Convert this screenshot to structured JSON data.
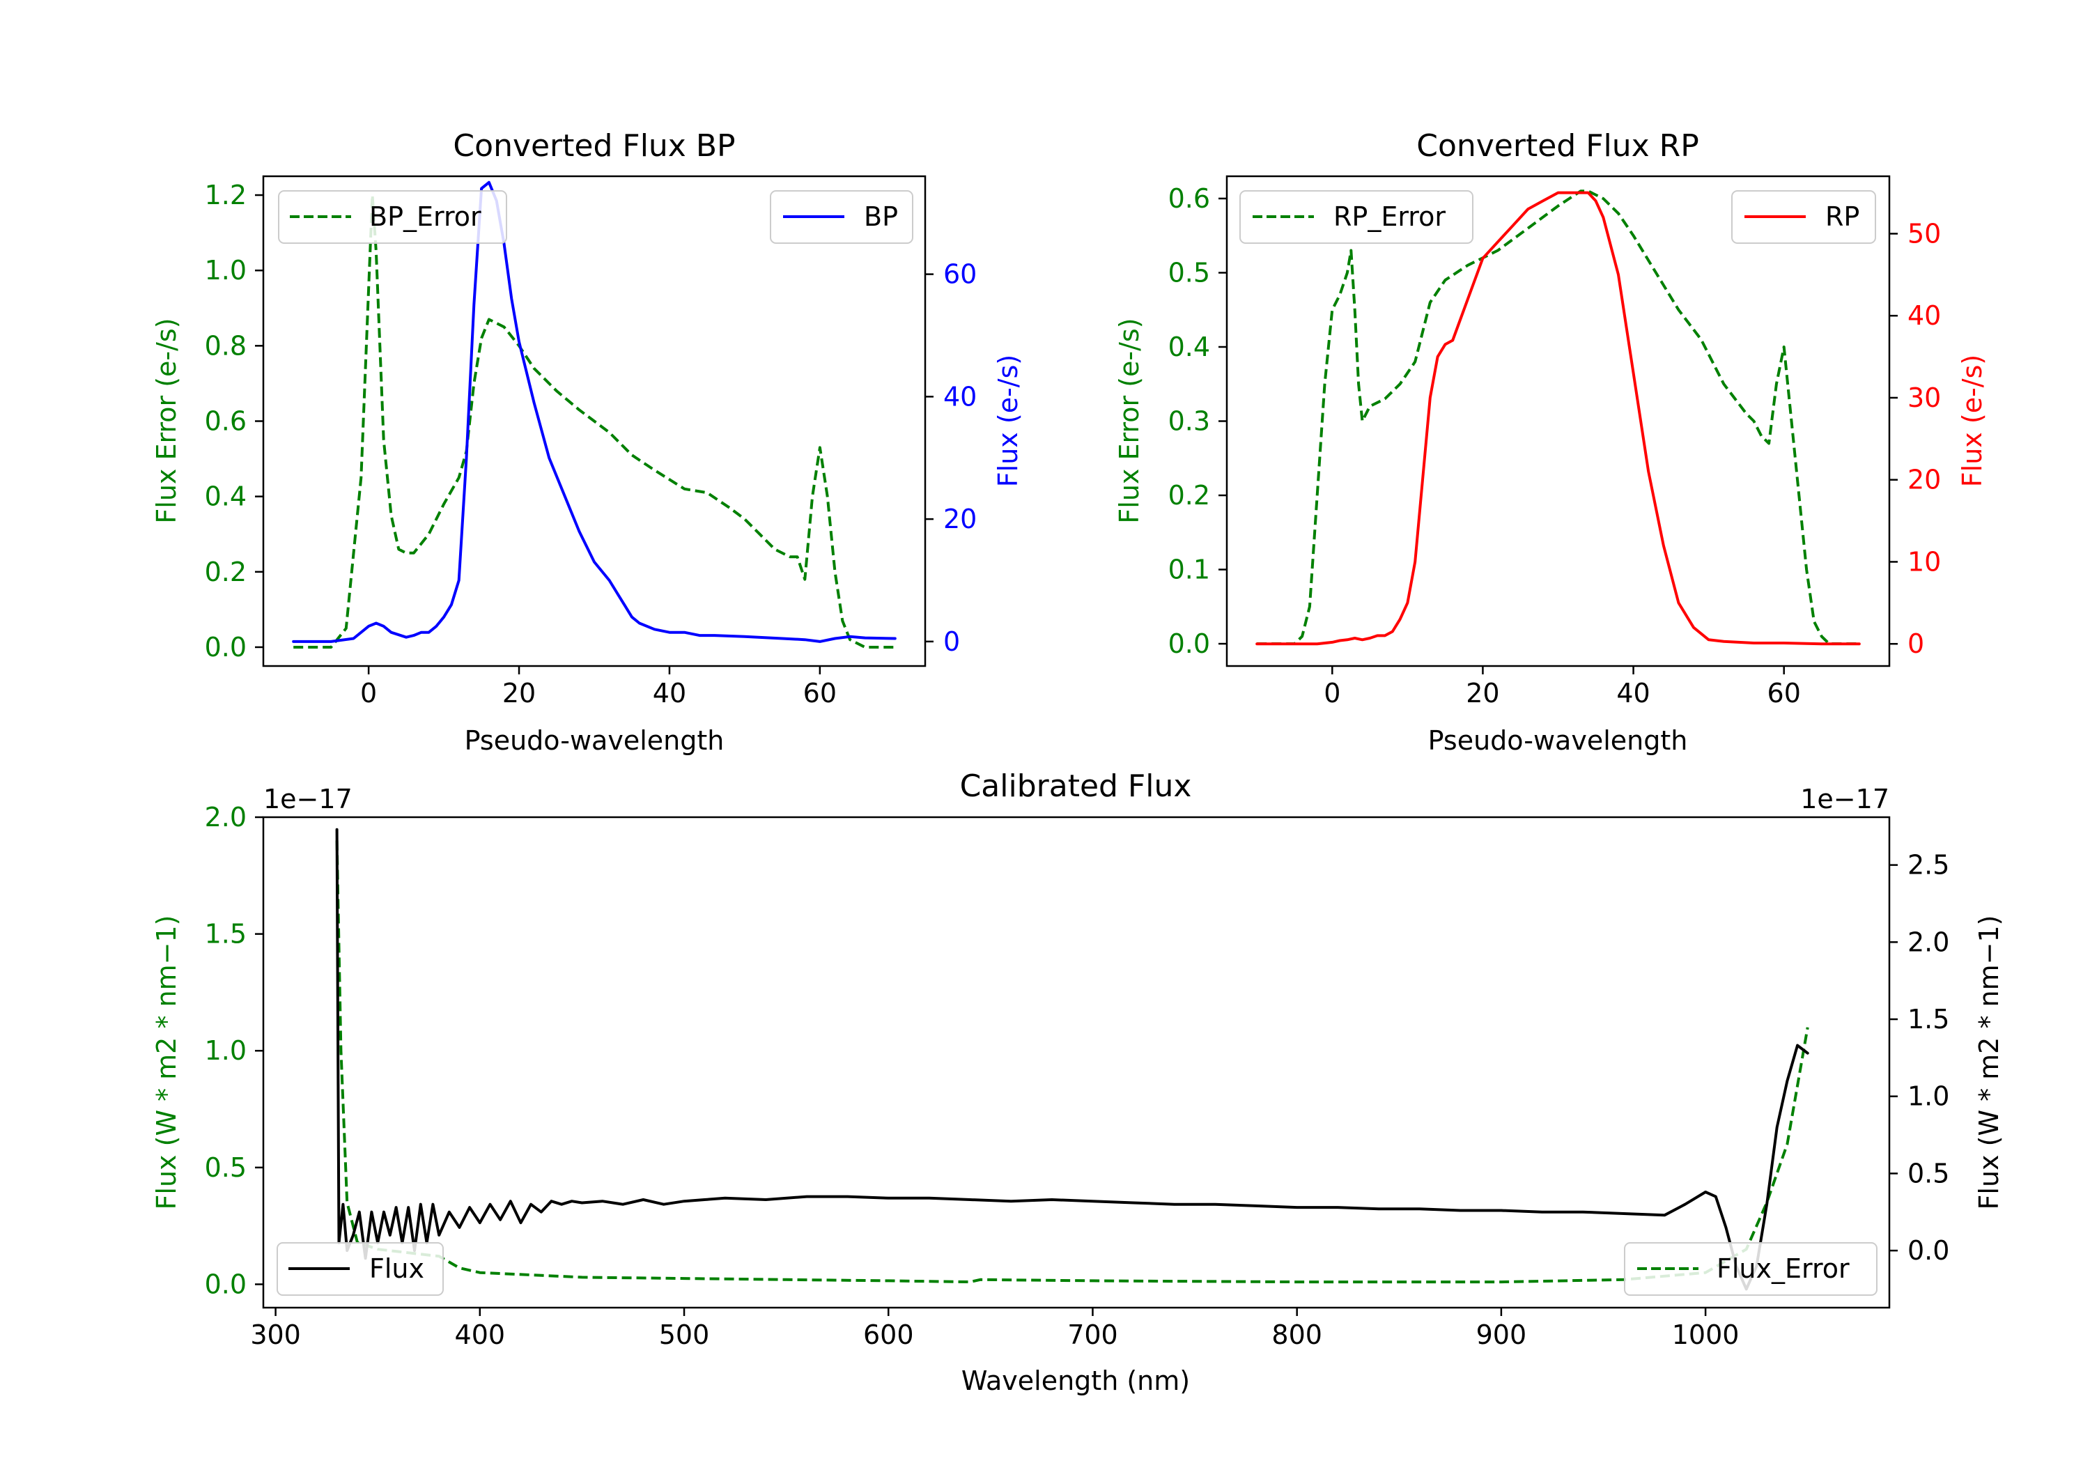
{
  "colors": {
    "error": "#008000",
    "bp": "#0000ff",
    "rp": "#ff0000",
    "flux": "#000000",
    "axis": "#000000"
  },
  "chart_data": [
    {
      "id": "bp",
      "type": "line",
      "title": "Converted Flux BP",
      "xlabel": "Pseudo-wavelength",
      "ylabel_left": "Flux Error (e-/s)",
      "ylabel_right": "Flux (e-/s)",
      "xlim": [
        -14,
        74
      ],
      "ylim_left": [
        -0.05,
        1.25
      ],
      "ylim_right": [
        -4,
        76
      ],
      "xticks": [
        0,
        20,
        40,
        60
      ],
      "xtick_labels": [
        "0",
        "20",
        "40",
        "60"
      ],
      "yticks_left": [
        0.0,
        0.2,
        0.4,
        0.6,
        0.8,
        1.0,
        1.2
      ],
      "ytick_labels_left": [
        "0.0",
        "0.2",
        "0.4",
        "0.6",
        "0.8",
        "1.0",
        "1.2"
      ],
      "yticks_right": [
        0,
        20,
        40,
        60
      ],
      "ytick_labels_right": [
        "0",
        "20",
        "40",
        "60"
      ],
      "legend_left": {
        "label": "BP_Error",
        "placement": "upper-left"
      },
      "legend_right": {
        "label": "BP",
        "placement": "upper-right"
      },
      "series": [
        {
          "name": "BP_Error",
          "axis": "left",
          "style": "dashed",
          "color": "error",
          "x": [
            -10,
            -5,
            -3,
            -1,
            0,
            0.5,
            1,
            2,
            3,
            4,
            5,
            6,
            8,
            10,
            12,
            13,
            14,
            15,
            16,
            18,
            20,
            22,
            25,
            28,
            32,
            35,
            38,
            42,
            45,
            48,
            50,
            52,
            54,
            56,
            57,
            58,
            59,
            60,
            61,
            62,
            63,
            64,
            66,
            70
          ],
          "y": [
            0,
            0,
            0.05,
            0.45,
            0.95,
            1.2,
            1.05,
            0.55,
            0.35,
            0.26,
            0.25,
            0.25,
            0.3,
            0.38,
            0.45,
            0.52,
            0.7,
            0.82,
            0.87,
            0.85,
            0.8,
            0.74,
            0.68,
            0.63,
            0.57,
            0.51,
            0.47,
            0.42,
            0.41,
            0.37,
            0.34,
            0.3,
            0.26,
            0.24,
            0.24,
            0.18,
            0.4,
            0.53,
            0.4,
            0.2,
            0.07,
            0.02,
            0,
            0
          ]
        },
        {
          "name": "BP",
          "axis": "right",
          "style": "solid",
          "color": "bp",
          "x": [
            -10,
            -5,
            -2,
            0,
            1,
            2,
            3,
            5,
            6,
            7,
            8,
            9,
            10,
            11,
            12,
            13,
            14,
            15,
            16,
            17,
            18,
            19,
            20,
            22,
            24,
            26,
            28,
            30,
            32,
            34,
            35,
            36,
            38,
            40,
            42,
            44,
            46,
            50,
            55,
            58,
            60,
            62,
            64,
            66,
            70
          ],
          "y": [
            0,
            0,
            0.5,
            2.5,
            3,
            2.5,
            1.5,
            0.7,
            1,
            1.5,
            1.5,
            2.5,
            4,
            6,
            10,
            30,
            55,
            74,
            75,
            72,
            65,
            56,
            49,
            39,
            30,
            24,
            18,
            13,
            10,
            6,
            4,
            3,
            2,
            1.5,
            1.5,
            1,
            1,
            0.8,
            0.5,
            0.3,
            0,
            0.5,
            0.8,
            0.6,
            0.5
          ]
        }
      ]
    },
    {
      "id": "rp",
      "type": "line",
      "title": "Converted Flux RP",
      "xlabel": "Pseudo-wavelength",
      "ylabel_left": "Flux Error (e-/s)",
      "ylabel_right": "Flux (e-/s)",
      "xlim": [
        -14,
        74
      ],
      "ylim_left": [
        -0.03,
        0.63
      ],
      "ylim_right": [
        -2.7,
        57
      ],
      "xticks": [
        0,
        20,
        40,
        60
      ],
      "xtick_labels": [
        "0",
        "20",
        "40",
        "60"
      ],
      "yticks_left": [
        0.0,
        0.1,
        0.2,
        0.3,
        0.4,
        0.5,
        0.6
      ],
      "ytick_labels_left": [
        "0.0",
        "0.1",
        "0.2",
        "0.3",
        "0.4",
        "0.5",
        "0.6"
      ],
      "yticks_right": [
        0,
        10,
        20,
        30,
        40,
        50
      ],
      "ytick_labels_right": [
        "0",
        "10",
        "20",
        "30",
        "40",
        "50"
      ],
      "legend_left": {
        "label": "RP_Error",
        "placement": "upper-left"
      },
      "legend_right": {
        "label": "RP",
        "placement": "upper-right"
      },
      "series": [
        {
          "name": "RP_Error",
          "axis": "left",
          "style": "dashed",
          "color": "error",
          "x": [
            -10,
            -5,
            -4,
            -3,
            -2,
            -1,
            0,
            1,
            2,
            2.5,
            3,
            3.5,
            4,
            5,
            7,
            9,
            11,
            13,
            15,
            18,
            22,
            26,
            30,
            33,
            34,
            36,
            38,
            40,
            43,
            46,
            49,
            52,
            55,
            56,
            57,
            58,
            59,
            60,
            61,
            62,
            63,
            64,
            65,
            66,
            70
          ],
          "y": [
            0,
            0,
            0.01,
            0.05,
            0.2,
            0.35,
            0.45,
            0.47,
            0.5,
            0.53,
            0.45,
            0.35,
            0.3,
            0.32,
            0.33,
            0.35,
            0.38,
            0.46,
            0.49,
            0.51,
            0.53,
            0.56,
            0.59,
            0.61,
            0.61,
            0.6,
            0.58,
            0.55,
            0.5,
            0.45,
            0.41,
            0.35,
            0.31,
            0.3,
            0.28,
            0.27,
            0.35,
            0.4,
            0.3,
            0.2,
            0.1,
            0.03,
            0.01,
            0,
            0
          ]
        },
        {
          "name": "RP",
          "axis": "right",
          "style": "solid",
          "color": "rp",
          "x": [
            -10,
            -2,
            0,
            1,
            2,
            3,
            4,
            5,
            6,
            7,
            8,
            9,
            10,
            11,
            12,
            13,
            14,
            15,
            16,
            18,
            20,
            22,
            24,
            26,
            28,
            30,
            32,
            33,
            34,
            35,
            36,
            38,
            40,
            42,
            44,
            46,
            48,
            50,
            52,
            54,
            56,
            60,
            65,
            70
          ],
          "y": [
            0,
            0,
            0.2,
            0.4,
            0.5,
            0.7,
            0.5,
            0.7,
            1,
            1,
            1.5,
            3,
            5,
            10,
            20,
            30,
            35,
            36.5,
            37,
            42,
            47,
            49,
            51,
            53,
            54,
            55,
            55,
            55,
            55,
            54,
            52,
            45,
            33,
            21,
            12,
            5,
            2,
            0.5,
            0.3,
            0.2,
            0.1,
            0.1,
            0,
            0
          ]
        }
      ]
    },
    {
      "id": "cal",
      "type": "line",
      "title": "Calibrated Flux",
      "xlabel": "Wavelength (nm)",
      "ylabel_left": "Flux (W * m2 * nm−1)",
      "ylabel_right": "Flux (W * m2 * nm−1)",
      "offset_left": "1e−17",
      "offset_right": "1e−17",
      "xlim": [
        294,
        1090
      ],
      "ylim_left": [
        -0.1,
        2.0
      ],
      "ylim_right": [
        -0.37,
        2.81
      ],
      "xticks": [
        300,
        400,
        500,
        600,
        700,
        800,
        900,
        1000
      ],
      "xtick_labels": [
        "300",
        "400",
        "500",
        "600",
        "700",
        "800",
        "900",
        "1000"
      ],
      "yticks_left": [
        0.0,
        0.5,
        1.0,
        1.5,
        2.0
      ],
      "ytick_labels_left": [
        "0.0",
        "0.5",
        "1.0",
        "1.5",
        "2.0"
      ],
      "yticks_right": [
        0.0,
        0.5,
        1.0,
        1.5,
        2.0,
        2.5
      ],
      "ytick_labels_right": [
        "0.0",
        "0.5",
        "1.0",
        "1.5",
        "2.0",
        "2.5"
      ],
      "legend_left": {
        "label": "Flux",
        "placement": "lower-left"
      },
      "legend_right": {
        "label": "Flux_Error",
        "placement": "lower-right"
      },
      "series": [
        {
          "name": "Flux_Error",
          "axis": "left",
          "style": "dashed",
          "color": "error",
          "x": [
            330,
            332,
            335,
            340,
            350,
            360,
            370,
            380,
            390,
            400,
            450,
            500,
            550,
            600,
            640,
            645,
            700,
            800,
            900,
            960,
            1000,
            1020,
            1030,
            1040,
            1050
          ],
          "y": [
            1.9,
            1.0,
            0.35,
            0.18,
            0.15,
            0.14,
            0.13,
            0.12,
            0.07,
            0.05,
            0.03,
            0.025,
            0.02,
            0.015,
            0.01,
            0.02,
            0.015,
            0.01,
            0.01,
            0.02,
            0.05,
            0.15,
            0.35,
            0.6,
            1.1
          ]
        },
        {
          "name": "Flux",
          "axis": "right",
          "style": "solid",
          "color": "flux",
          "x": [
            330,
            331,
            333,
            335,
            338,
            341,
            344,
            347,
            350,
            353,
            356,
            359,
            362,
            365,
            368,
            371,
            374,
            377,
            380,
            385,
            390,
            395,
            400,
            405,
            410,
            415,
            420,
            425,
            430,
            435,
            440,
            445,
            450,
            460,
            470,
            480,
            490,
            500,
            510,
            520,
            540,
            560,
            580,
            600,
            620,
            640,
            660,
            680,
            700,
            720,
            740,
            760,
            780,
            800,
            820,
            840,
            860,
            880,
            900,
            920,
            940,
            960,
            980,
            990,
            1000,
            1005,
            1010,
            1015,
            1020,
            1025,
            1030,
            1035,
            1040,
            1045,
            1050
          ],
          "y": [
            2.73,
            0.05,
            0.3,
            0.0,
            0.1,
            0.25,
            -0.05,
            0.25,
            0.05,
            0.25,
            0.1,
            0.28,
            0.05,
            0.28,
            0.0,
            0.3,
            0.05,
            0.3,
            0.1,
            0.25,
            0.15,
            0.28,
            0.18,
            0.3,
            0.2,
            0.32,
            0.18,
            0.3,
            0.25,
            0.32,
            0.3,
            0.32,
            0.31,
            0.32,
            0.3,
            0.33,
            0.3,
            0.32,
            0.33,
            0.34,
            0.33,
            0.35,
            0.35,
            0.34,
            0.34,
            0.33,
            0.32,
            0.33,
            0.32,
            0.31,
            0.3,
            0.3,
            0.29,
            0.28,
            0.28,
            0.27,
            0.27,
            0.26,
            0.26,
            0.25,
            0.25,
            0.24,
            0.23,
            0.3,
            0.38,
            0.35,
            0.15,
            -0.1,
            -0.25,
            -0.1,
            0.3,
            0.8,
            1.1,
            1.33,
            1.28
          ]
        }
      ]
    }
  ]
}
